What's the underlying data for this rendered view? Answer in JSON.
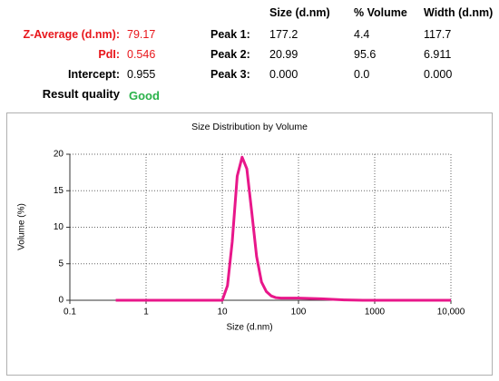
{
  "summary": [
    {
      "label": "Z-Average (d.nm):",
      "value": "79.17"
    },
    {
      "label": "PdI:",
      "value": "0.546"
    },
    {
      "label": "Intercept:",
      "value": "0.955"
    },
    {
      "label": "Result quality",
      "value": "Good"
    }
  ],
  "peaks": {
    "columns": [
      "Size (d.nm)",
      "% Volume",
      "Width (d.nm)"
    ],
    "rows": [
      {
        "label": "Peak 1:",
        "values": [
          "177.2",
          "4.4",
          "117.7"
        ]
      },
      {
        "label": "Peak 2:",
        "values": [
          "20.99",
          "95.6",
          "6.911"
        ]
      },
      {
        "label": "Peak 3:",
        "values": [
          "0.000",
          "0.0",
          "0.000"
        ]
      }
    ]
  },
  "chart_data": {
    "type": "line",
    "title": "Size Distribution by Volume",
    "x_label": "Size (d.nm)",
    "y_label": "Volume (%)",
    "x_scale": "log",
    "grid": true,
    "xlim": [
      0.1,
      10000
    ],
    "xticks": [
      0.1,
      1,
      10,
      100,
      1000,
      {
        "value": 10000,
        "label": "10,000"
      }
    ],
    "ylim": [
      0,
      20
    ],
    "yticks": [
      0,
      5,
      10,
      15,
      20
    ],
    "series": [
      {
        "color": "#e8178a",
        "x": [
          0.4,
          1,
          5,
          10,
          11.7,
          13.5,
          15.7,
          18.2,
          21.0,
          24.4,
          28.2,
          32.7,
          37.8,
          43.8,
          50.7,
          58.8,
          68.1,
          100,
          200,
          400,
          700,
          1000,
          10000
        ],
        "values": [
          0,
          0,
          0,
          0,
          2,
          8,
          17,
          19.6,
          18,
          12,
          6,
          2.5,
          1.2,
          0.6,
          0.35,
          0.3,
          0.3,
          0.3,
          0.2,
          0.05,
          0,
          0,
          0
        ]
      }
    ]
  }
}
